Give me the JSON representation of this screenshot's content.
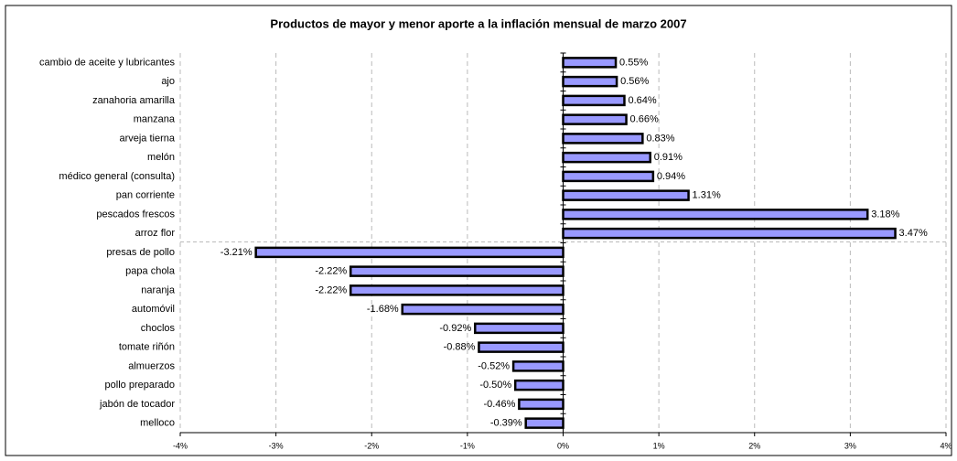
{
  "chart_data": {
    "type": "bar",
    "orientation": "horizontal",
    "title": "Productos de mayor y menor aporte a la inflación mensual de marzo 2007",
    "categories": [
      "cambio de aceite y lubricantes",
      "ajo",
      "zanahoria amarilla",
      "manzana",
      "arveja tierna",
      "melón",
      "médico general (consulta)",
      "pan corriente",
      "pescados frescos",
      "arroz flor",
      "presas de pollo",
      "papa chola",
      "naranja",
      "automóvil",
      "choclos",
      "tomate riñón",
      "almuerzos",
      "pollo preparado",
      "jabón de tocador",
      "melloco"
    ],
    "values": [
      0.55,
      0.56,
      0.64,
      0.66,
      0.83,
      0.91,
      0.94,
      1.31,
      3.18,
      3.47,
      -3.21,
      -2.22,
      -2.22,
      -1.68,
      -0.92,
      -0.88,
      -0.52,
      -0.5,
      -0.46,
      -0.39
    ],
    "value_labels": [
      "0.55%",
      "0.56%",
      "0.64%",
      "0.66%",
      "0.83%",
      "0.91%",
      "0.94%",
      "1.31%",
      "3.18%",
      "3.47%",
      "-3.21%",
      "-2.22%",
      "-2.22%",
      "-1.68%",
      "-0.92%",
      "-0.88%",
      "-0.52%",
      "-0.50%",
      "-0.46%",
      "-0.39%"
    ],
    "color": "#9999ff",
    "xlim": [
      -4,
      4
    ],
    "xticks": [
      {
        "value": -4,
        "label": "-4%"
      },
      {
        "value": -3,
        "label": "-3%"
      },
      {
        "value": -2,
        "label": "-2%"
      },
      {
        "value": -1,
        "label": "-1%"
      },
      {
        "value": 0,
        "label": "0%"
      },
      {
        "value": 1,
        "label": "1%"
      },
      {
        "value": 2,
        "label": "2%"
      },
      {
        "value": 3,
        "label": "3%"
      },
      {
        "value": 4,
        "label": "4%"
      }
    ],
    "grid": true
  }
}
